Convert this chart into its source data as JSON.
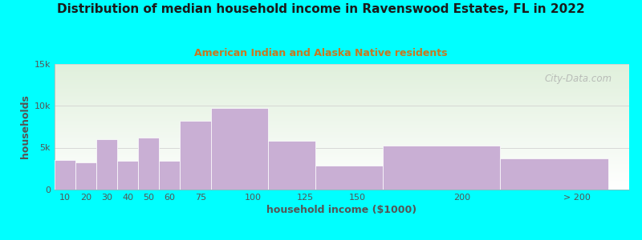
{
  "title": "Distribution of median household income in Ravenswood Estates, FL in 2022",
  "subtitle": "American Indian and Alaska Native residents",
  "xlabel": "household income ($1000)",
  "ylabel": "households",
  "bar_labels": [
    "10",
    "20",
    "30",
    "40",
    "50",
    "60",
    "75",
    "100",
    "125",
    "150",
    "200",
    "> 200"
  ],
  "bar_values": [
    3500,
    3200,
    6000,
    3400,
    6200,
    3400,
    8200,
    9700,
    5800,
    2900,
    5200,
    3700
  ],
  "bar_color": "#c9afd4",
  "background_outer": "#00ffff",
  "bg_top_color": "#e0f0dc",
  "bg_bottom_color": "#ffffff",
  "title_color": "#1a1a1a",
  "subtitle_color": "#c87820",
  "axis_label_color": "#555555",
  "tick_color": "#555555",
  "ytick_labels": [
    "0",
    "5k",
    "10k",
    "15k"
  ],
  "ytick_values": [
    0,
    5000,
    10000,
    15000
  ],
  "ylim": [
    0,
    15000
  ],
  "watermark_text": "City-Data.com",
  "bar_lefts": [
    5,
    15,
    25,
    35,
    45,
    55,
    65,
    80,
    107,
    130,
    162,
    218
  ],
  "bar_widths": [
    10,
    10,
    10,
    10,
    10,
    10,
    15,
    27,
    23,
    32,
    56,
    52
  ],
  "xlim": [
    5,
    280
  ],
  "xtick_positions": [
    10,
    20,
    30,
    40,
    50,
    60,
    75,
    100,
    125,
    150,
    200,
    255
  ]
}
